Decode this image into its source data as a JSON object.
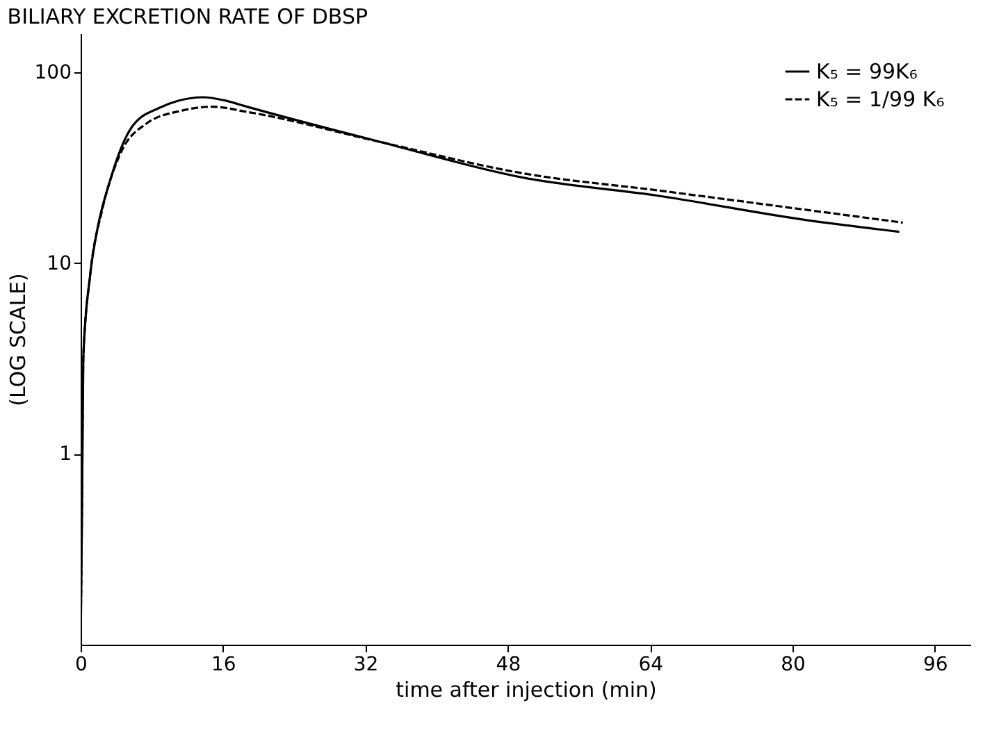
{
  "chart_data": {
    "type": "line",
    "title": "BILIARY EXCRETION RATE OF DBSP",
    "xlabel": "time after injection (min)",
    "ylabel": "(LOG SCALE)",
    "log": "y",
    "xlim": [
      0,
      100
    ],
    "xticks": [
      0,
      16,
      32,
      48,
      64,
      80,
      96
    ],
    "ylim": [
      0.1,
      160
    ],
    "yticks": [
      1,
      10,
      100
    ],
    "grid": false,
    "legend": "top right",
    "marker": "none",
    "series": [
      {
        "name": "K₅ = 99K₆",
        "color": "#000000",
        "line_style": "solid",
        "x": [
          0,
          0.15,
          0.3,
          1.05,
          1.8,
          3.3,
          5.8,
          8.8,
          13.8,
          16.3,
          18.7,
          33.8,
          49.8,
          65,
          81.6,
          92
        ],
        "values": [
          0.1,
          0.5,
          3.2,
          8.5,
          14.4,
          27,
          52,
          65,
          74,
          71,
          66,
          43,
          28,
          22.5,
          16.8,
          14.6
        ]
      },
      {
        "name": "K₅ = 1/99 K₆",
        "color": "#000000",
        "line_style": "dashed",
        "x": [
          0,
          0.15,
          0.3,
          1.05,
          2.4,
          4.3,
          7.3,
          11.4,
          14.8,
          18.7,
          33.8,
          49.8,
          65,
          81.6,
          92.4
        ],
        "values": [
          0.1,
          0.5,
          3.2,
          8.5,
          18.8,
          36,
          53.5,
          63,
          66,
          62,
          43,
          29.5,
          24,
          19,
          16.3
        ]
      }
    ]
  }
}
